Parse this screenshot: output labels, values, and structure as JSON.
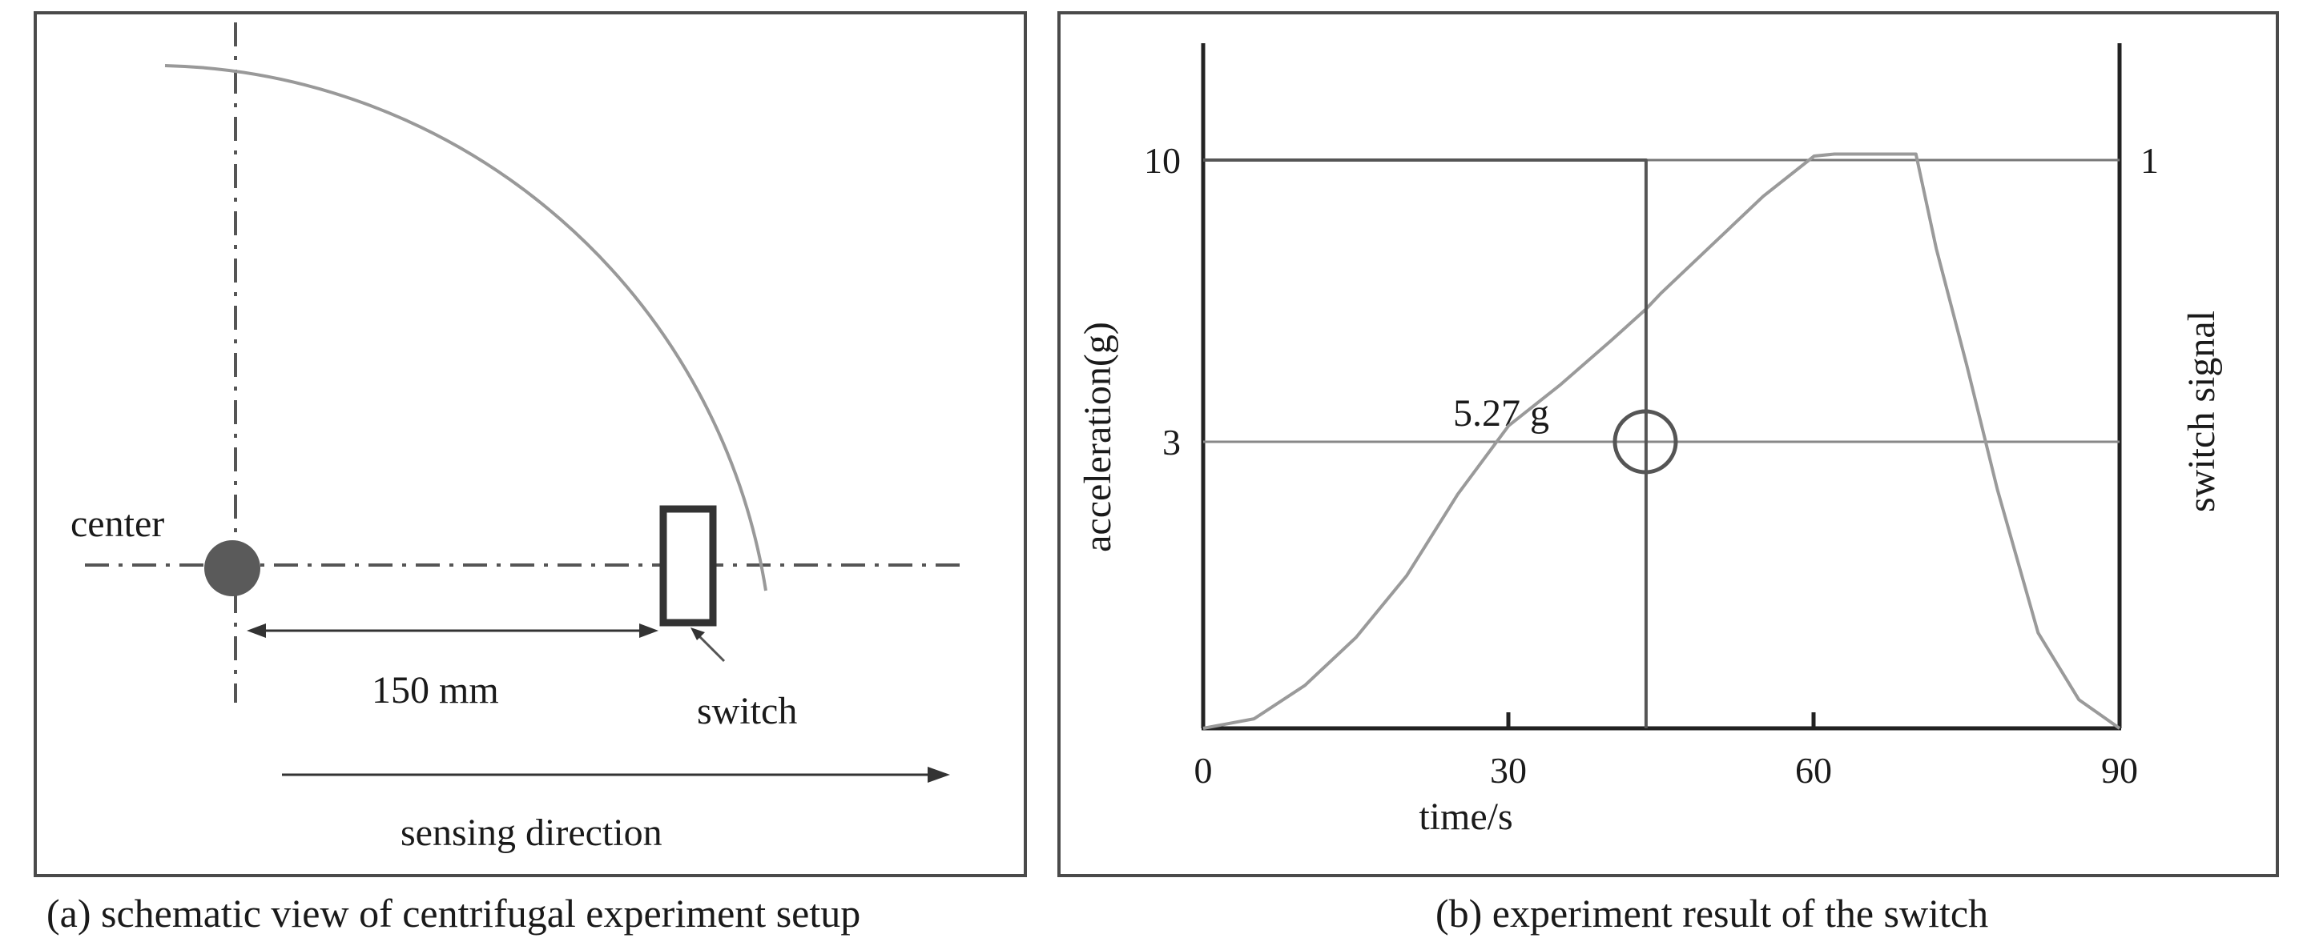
{
  "captions": {
    "a": "(a) schematic view of centrifugal experiment setup",
    "b": "(b) experiment result of the switch"
  },
  "schematic": {
    "center_label": "center",
    "radius_label": "150 mm",
    "switch_label": "switch",
    "direction_label": "sensing direction"
  },
  "chart_data": {
    "type": "line",
    "xlabel": "time/s",
    "ylabel_left": "acceleration(g)",
    "ylabel_right": "switch signal",
    "x_ticks": [
      "0",
      "30",
      "60",
      "90"
    ],
    "y_ticks_left": [
      "3",
      "10"
    ],
    "y_ticks_right": [
      "1"
    ],
    "xlim": [
      0,
      90
    ],
    "annotation": "5.27 g",
    "series": [
      {
        "points": [
          [
            0,
            0
          ],
          [
            5,
            0.1
          ],
          [
            10,
            0.45
          ],
          [
            15,
            0.95
          ],
          [
            20,
            1.6
          ],
          [
            25,
            2.45
          ],
          [
            30,
            3.4
          ],
          [
            35,
            4.4
          ],
          [
            40,
            5.5
          ],
          [
            43.5,
            6.3
          ],
          [
            45,
            6.7
          ],
          [
            50,
            7.9
          ],
          [
            55,
            9.1
          ],
          [
            60,
            10.1
          ],
          [
            62,
            10.15
          ],
          [
            70,
            10.15
          ],
          [
            72,
            7.8
          ],
          [
            75,
            4.9
          ],
          [
            78,
            2.5
          ],
          [
            82,
            1.0
          ],
          [
            86,
            0.3
          ],
          [
            90,
            0
          ]
        ]
      },
      {
        "points": [
          [
            0,
            10
          ],
          [
            43.5,
            10
          ],
          [
            43.5,
            0
          ]
        ]
      }
    ]
  }
}
